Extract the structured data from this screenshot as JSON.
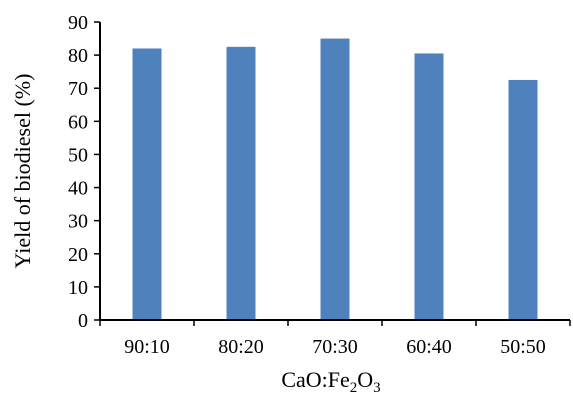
{
  "chart_data": {
    "type": "bar",
    "categories": [
      "90:10",
      "80:20",
      "70:30",
      "60:40",
      "50:50"
    ],
    "values": [
      82,
      82.5,
      85,
      80.5,
      72.5
    ],
    "ylabel": "Yield of biodiesel (%)",
    "xlabel": {
      "parts": [
        {
          "text": "CaO:Fe",
          "sub": false
        },
        {
          "text": "2",
          "sub": true
        },
        {
          "text": "O",
          "sub": false
        },
        {
          "text": "3",
          "sub": true
        }
      ]
    },
    "ylim": [
      0,
      90
    ],
    "yticks": [
      0,
      10,
      20,
      30,
      40,
      50,
      60,
      70,
      80,
      90
    ],
    "grid": false,
    "legend": "none",
    "bar_color": "#4F81BD"
  }
}
